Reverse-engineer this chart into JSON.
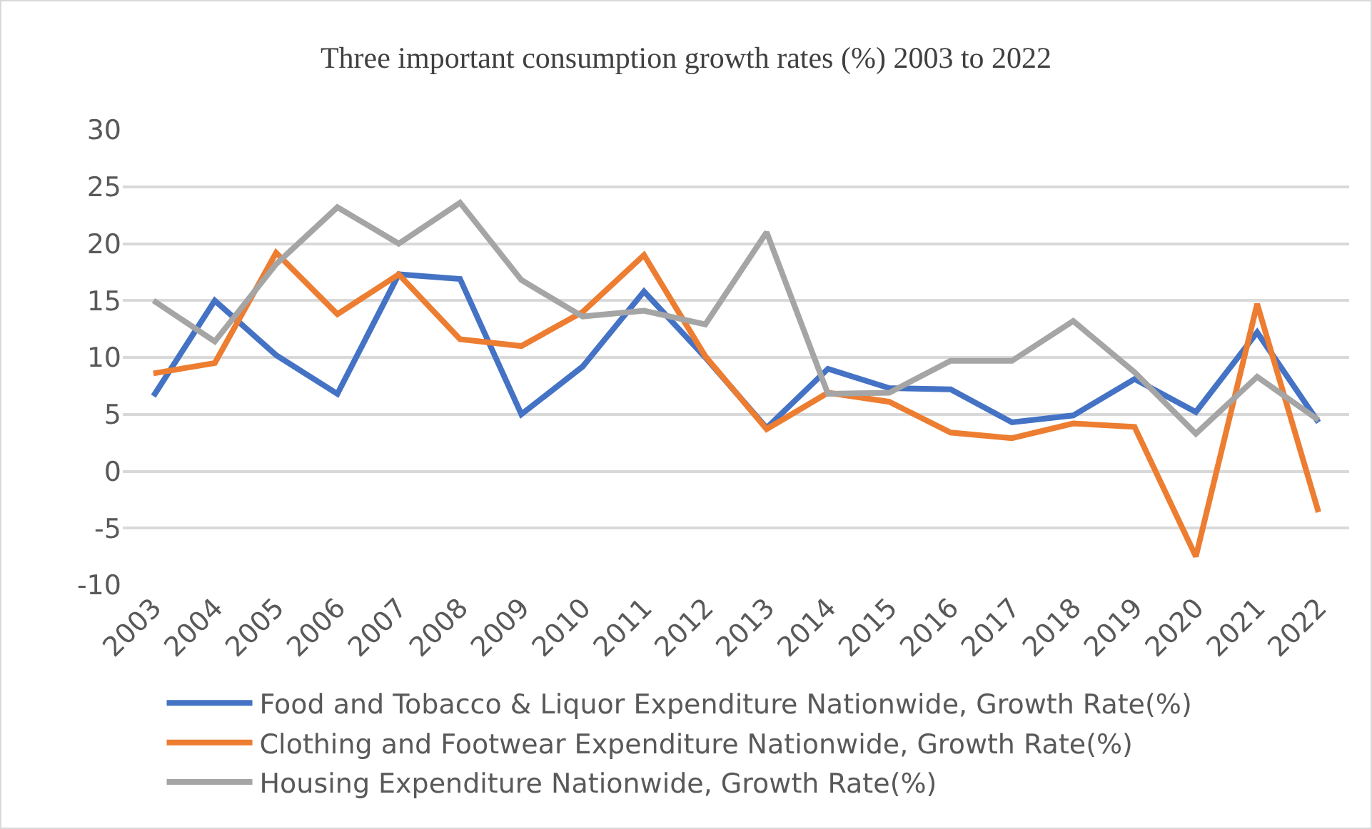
{
  "chart_data": {
    "type": "line",
    "title": "Three important consumption growth rates (%) 2003 to 2022",
    "categories": [
      "2003",
      "2004",
      "2005",
      "2006",
      "2007",
      "2008",
      "2009",
      "2010",
      "2011",
      "2012",
      "2013",
      "2014",
      "2015",
      "2016",
      "2017",
      "2018",
      "2019",
      "2020",
      "2021",
      "2022"
    ],
    "series": [
      {
        "name": "Food and Tobacco & Liquor Expenditure Nationwide, Growth Rate(%)",
        "color": "#4472c4",
        "values": [
          6.6,
          15,
          10.2,
          6.8,
          17.3,
          16.9,
          5,
          9.2,
          15.8,
          10,
          3.8,
          9,
          7.3,
          7.2,
          4.3,
          4.9,
          8.1,
          5.2,
          12.2,
          4.3
        ]
      },
      {
        "name": "Clothing and Footwear Expenditure Nationwide, Growth Rate(%)",
        "color": "#ed7d31",
        "values": [
          8.6,
          9.5,
          19.2,
          13.8,
          17.3,
          11.6,
          11,
          14,
          19,
          10.1,
          3.7,
          6.9,
          6.1,
          3.4,
          2.9,
          4.2,
          3.9,
          -7.5,
          14.7,
          -3.6
        ]
      },
      {
        "name": "Housing Expenditure Nationwide, Growth Rate(%)",
        "color": "#a5a5a5",
        "values": [
          15,
          11.4,
          18.2,
          23.2,
          20,
          23.6,
          16.8,
          13.6,
          14.1,
          12.9,
          21,
          6.8,
          6.9,
          9.7,
          9.7,
          13.2,
          8.7,
          3.3,
          8.3,
          4.5
        ]
      }
    ],
    "ylim": [
      -10,
      30
    ],
    "yticks": [
      -10,
      -5,
      0,
      5,
      10,
      15,
      20,
      25,
      30
    ],
    "grid": "y",
    "legend": "bottom",
    "marker": "none",
    "line_style": "solid"
  }
}
